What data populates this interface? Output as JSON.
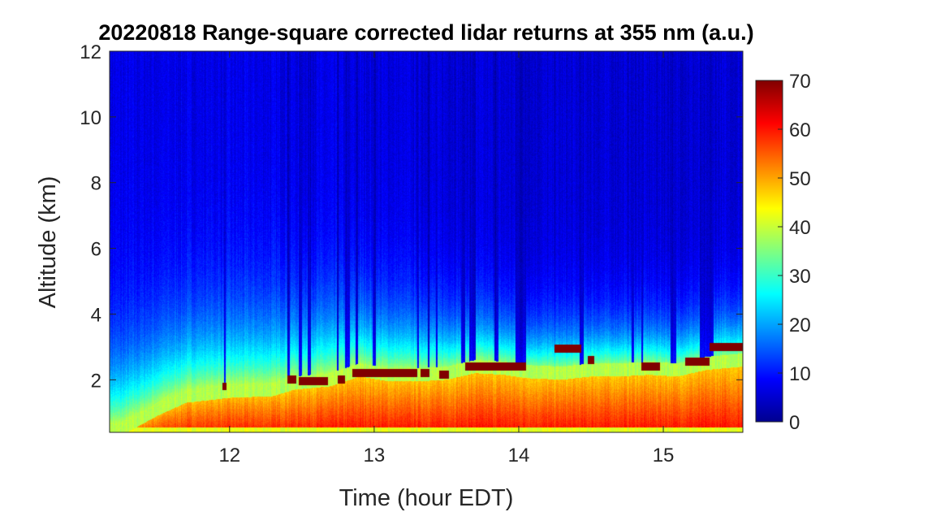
{
  "chart_data": {
    "type": "heatmap",
    "title": "20220818  Range-square corrected lidar returns at 355 nm (a.u.)",
    "xlabel": "Time (hour EDT)",
    "ylabel": "Altitude (km)",
    "xlim": [
      11.17,
      15.55
    ],
    "ylim": [
      0.4,
      12
    ],
    "xticks": [
      12,
      13,
      14,
      15
    ],
    "yticks": [
      2,
      4,
      6,
      8,
      10,
      12
    ],
    "colorbar": {
      "ticks": [
        0,
        10,
        20,
        30,
        40,
        50,
        60,
        70
      ],
      "range": [
        0,
        70
      ],
      "colormap": "jet"
    },
    "grid": false,
    "boundary_layer_top_km": [
      [
        11.25,
        0.5
      ],
      [
        11.5,
        1.1
      ],
      [
        11.7,
        1.5
      ],
      [
        12.0,
        1.65
      ],
      [
        12.3,
        1.7
      ],
      [
        12.45,
        1.9
      ],
      [
        12.7,
        2.0
      ],
      [
        12.9,
        2.3
      ],
      [
        13.1,
        2.15
      ],
      [
        13.3,
        2.15
      ],
      [
        13.5,
        2.2
      ],
      [
        13.7,
        2.4
      ],
      [
        13.9,
        2.35
      ],
      [
        14.05,
        2.25
      ],
      [
        14.3,
        2.2
      ],
      [
        14.5,
        2.3
      ],
      [
        14.7,
        2.3
      ],
      [
        14.9,
        2.35
      ],
      [
        15.1,
        2.3
      ],
      [
        15.3,
        2.5
      ],
      [
        15.55,
        2.6
      ]
    ],
    "cloud_layers": [
      {
        "t_start": 11.95,
        "t_end": 11.98,
        "alt_km": 1.8
      },
      {
        "t_start": 12.4,
        "t_end": 12.46,
        "alt_km": 2.0
      },
      {
        "t_start": 12.48,
        "t_end": 12.68,
        "alt_km": 1.95
      },
      {
        "t_start": 12.75,
        "t_end": 12.8,
        "alt_km": 2.0
      },
      {
        "t_start": 12.85,
        "t_end": 13.3,
        "alt_km": 2.2
      },
      {
        "t_start": 13.32,
        "t_end": 13.38,
        "alt_km": 2.2
      },
      {
        "t_start": 13.45,
        "t_end": 13.52,
        "alt_km": 2.15
      },
      {
        "t_start": 13.63,
        "t_end": 13.8,
        "alt_km": 2.4
      },
      {
        "t_start": 13.8,
        "t_end": 14.05,
        "alt_km": 2.4
      },
      {
        "t_start": 14.25,
        "t_end": 14.43,
        "alt_km": 2.95
      },
      {
        "t_start": 14.48,
        "t_end": 14.52,
        "alt_km": 2.6
      },
      {
        "t_start": 14.85,
        "t_end": 14.98,
        "alt_km": 2.4
      },
      {
        "t_start": 15.15,
        "t_end": 15.32,
        "alt_km": 2.55
      },
      {
        "t_start": 15.32,
        "t_end": 15.55,
        "alt_km": 3.0
      }
    ],
    "clear_gaps": [
      [
        11.96,
        11.975
      ],
      [
        12.4,
        12.415
      ],
      [
        12.48,
        12.5
      ],
      [
        12.54,
        12.56
      ],
      [
        12.74,
        12.755
      ],
      [
        12.8,
        12.83
      ],
      [
        12.87,
        12.89
      ],
      [
        12.99,
        13.01
      ],
      [
        13.3,
        13.31
      ],
      [
        13.37,
        13.38
      ],
      [
        13.43,
        13.44
      ],
      [
        13.6,
        13.63
      ],
      [
        13.66,
        13.7
      ],
      [
        13.83,
        13.86
      ],
      [
        13.98,
        14.05
      ],
      [
        14.42,
        14.45
      ],
      [
        14.78,
        14.8
      ],
      [
        14.846,
        14.862
      ],
      [
        15.05,
        15.09
      ],
      [
        15.25,
        15.35
      ]
    ]
  }
}
